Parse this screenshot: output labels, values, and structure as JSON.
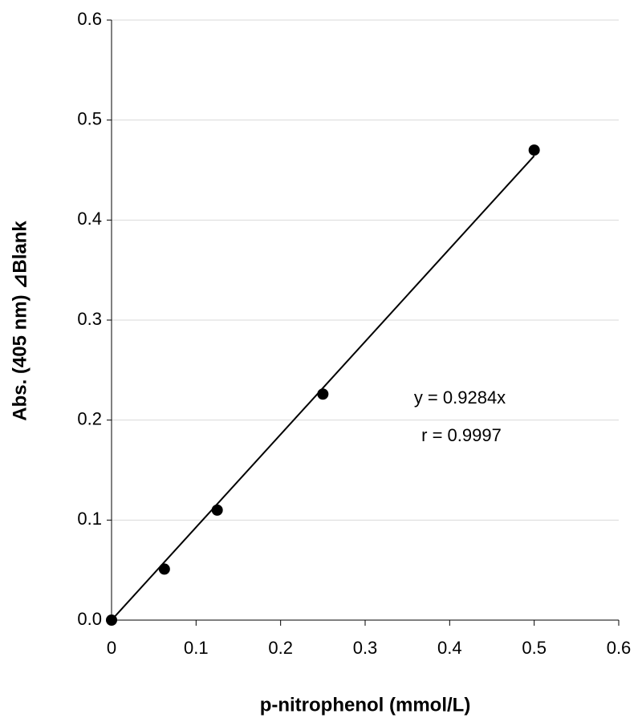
{
  "chart_data": {
    "type": "scatter",
    "xlabel": "p-nitrophenol  (mmol/L)",
    "ylabel": "Abs. (405 nm) ⊿Blank",
    "x": [
      0,
      0.0625,
      0.125,
      0.25,
      0.5
    ],
    "values": [
      0,
      0.051,
      0.11,
      0.226,
      0.47
    ],
    "color": "#000000",
    "xlim": [
      0,
      0.6
    ],
    "xticks": [
      0,
      0.1,
      0.2,
      0.3,
      0.4,
      0.5,
      0.6
    ],
    "ylim": [
      0,
      0.6
    ],
    "yticks": [
      {
        "value": 0,
        "label": "0.0"
      },
      0.1,
      0.2,
      0.3,
      0.4,
      0.5,
      0.6
    ],
    "grid": true,
    "trendline": {
      "slope": 0.9284,
      "label": "y = 0.9284x"
    },
    "annotations": [
      "r = 0.9997"
    ]
  }
}
